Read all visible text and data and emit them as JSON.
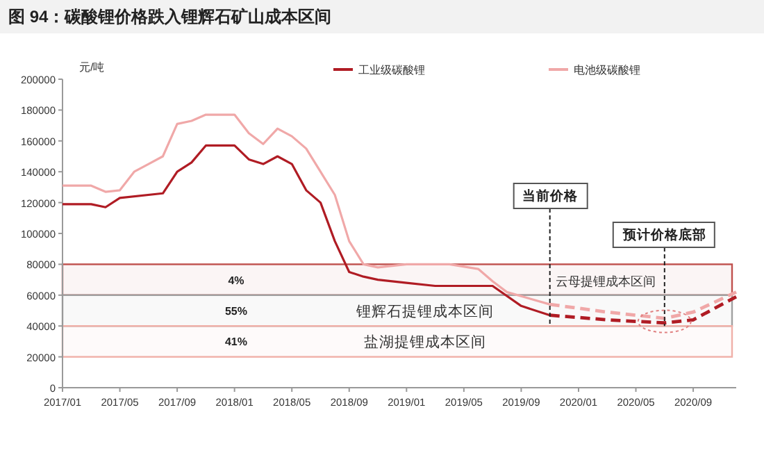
{
  "chart_data": {
    "type": "line",
    "title": "图 94：碳酸锂价格跌入锂辉石矿山成本区间",
    "ylabel": "元/吨",
    "series": [
      {
        "name": "工业级碳酸锂",
        "color": "#b01c24",
        "line_style": "solid",
        "x": [
          "2017-01",
          "2017-03",
          "2017-04",
          "2017-05",
          "2017-08",
          "2017-09",
          "2017-10",
          "2017-11",
          "2018-01",
          "2018-02",
          "2018-03",
          "2018-04",
          "2018-05",
          "2018-06",
          "2018-07",
          "2018-08",
          "2018-09",
          "2018-10",
          "2018-11",
          "2019-01",
          "2019-03",
          "2019-07",
          "2019-09",
          "2019-11"
        ],
        "values": [
          119000,
          119000,
          117000,
          123000,
          126000,
          140000,
          146000,
          157000,
          157000,
          148000,
          145000,
          150000,
          145000,
          128000,
          120000,
          95000,
          75000,
          72000,
          70000,
          68000,
          66000,
          66000,
          53000,
          47000
        ]
      },
      {
        "name": "电池级碳酸锂",
        "color": "#f0a8a8",
        "line_style": "solid",
        "x": [
          "2017-01",
          "2017-03",
          "2017-04",
          "2017-05",
          "2017-06",
          "2017-07",
          "2017-08",
          "2017-09",
          "2017-10",
          "2017-11",
          "2018-01",
          "2018-02",
          "2018-03",
          "2018-04",
          "2018-05",
          "2018-06",
          "2018-07",
          "2018-08",
          "2018-09",
          "2018-10",
          "2018-11",
          "2019-01",
          "2019-04",
          "2019-06",
          "2019-07",
          "2019-08",
          "2019-11"
        ],
        "values": [
          131000,
          131000,
          127000,
          128000,
          140000,
          145000,
          150000,
          171000,
          173000,
          177000,
          177000,
          165000,
          158000,
          168000,
          163000,
          155000,
          140000,
          125000,
          95000,
          80000,
          78000,
          80000,
          80000,
          77000,
          69000,
          62000,
          54000
        ]
      },
      {
        "color": "#b01c24",
        "line_style": "dashed",
        "x": [
          "2019-11",
          "2020-03",
          "2020-07",
          "2020-09",
          "2020-12"
        ],
        "values": [
          47000,
          44000,
          42000,
          44000,
          59000
        ]
      },
      {
        "color": "#f0a8a8",
        "line_style": "dashed",
        "x": [
          "2019-11",
          "2020-03",
          "2020-07",
          "2020-09",
          "2020-12"
        ],
        "values": [
          54000,
          49000,
          45000,
          49000,
          62000
        ]
      }
    ],
    "xlim": [
      "2017-01",
      "2020-12"
    ],
    "xticks": [
      {
        "value": "2017-01",
        "label": "2017/01"
      },
      {
        "value": "2017-05",
        "label": "2017/05"
      },
      {
        "value": "2017-09",
        "label": "2017/09"
      },
      {
        "value": "2018-01",
        "label": "2018/01"
      },
      {
        "value": "2018-05",
        "label": "2018/05"
      },
      {
        "value": "2018-09",
        "label": "2018/09"
      },
      {
        "value": "2019-01",
        "label": "2019/01"
      },
      {
        "value": "2019-05",
        "label": "2019/05"
      },
      {
        "value": "2019-09",
        "label": "2019/09"
      },
      {
        "value": "2020-01",
        "label": "2020/01"
      },
      {
        "value": "2020-05",
        "label": "2020/05"
      },
      {
        "value": "2020-09",
        "label": "2020/09"
      }
    ],
    "ylim": [
      0,
      200000
    ],
    "yticks": [
      0,
      20000,
      40000,
      60000,
      80000,
      100000,
      120000,
      140000,
      160000,
      180000,
      200000
    ],
    "bands": [
      {
        "axis": "y",
        "from": 60000,
        "to": 80000,
        "label": "云母提锂成本区间",
        "color": "#c0504d"
      },
      {
        "axis": "y",
        "from": 40000,
        "to": 60000,
        "label": "锂辉石提锂成本区间",
        "color": "#a0a0a0"
      },
      {
        "axis": "y",
        "from": 20000,
        "to": 40000,
        "label": "盐湖提锂成本区间",
        "color": "#f0b0a8"
      }
    ],
    "annotations": [
      "4%",
      "55%",
      "41%"
    ],
    "ref_lines": [
      {
        "axis": "x",
        "value": "2019-11",
        "label": "当前价格",
        "line_style": "dashed"
      },
      {
        "axis": "x",
        "value": "2020-07",
        "label": "预计价格底部",
        "line_style": "dashed"
      }
    ],
    "legend": "top",
    "grid": false
  }
}
